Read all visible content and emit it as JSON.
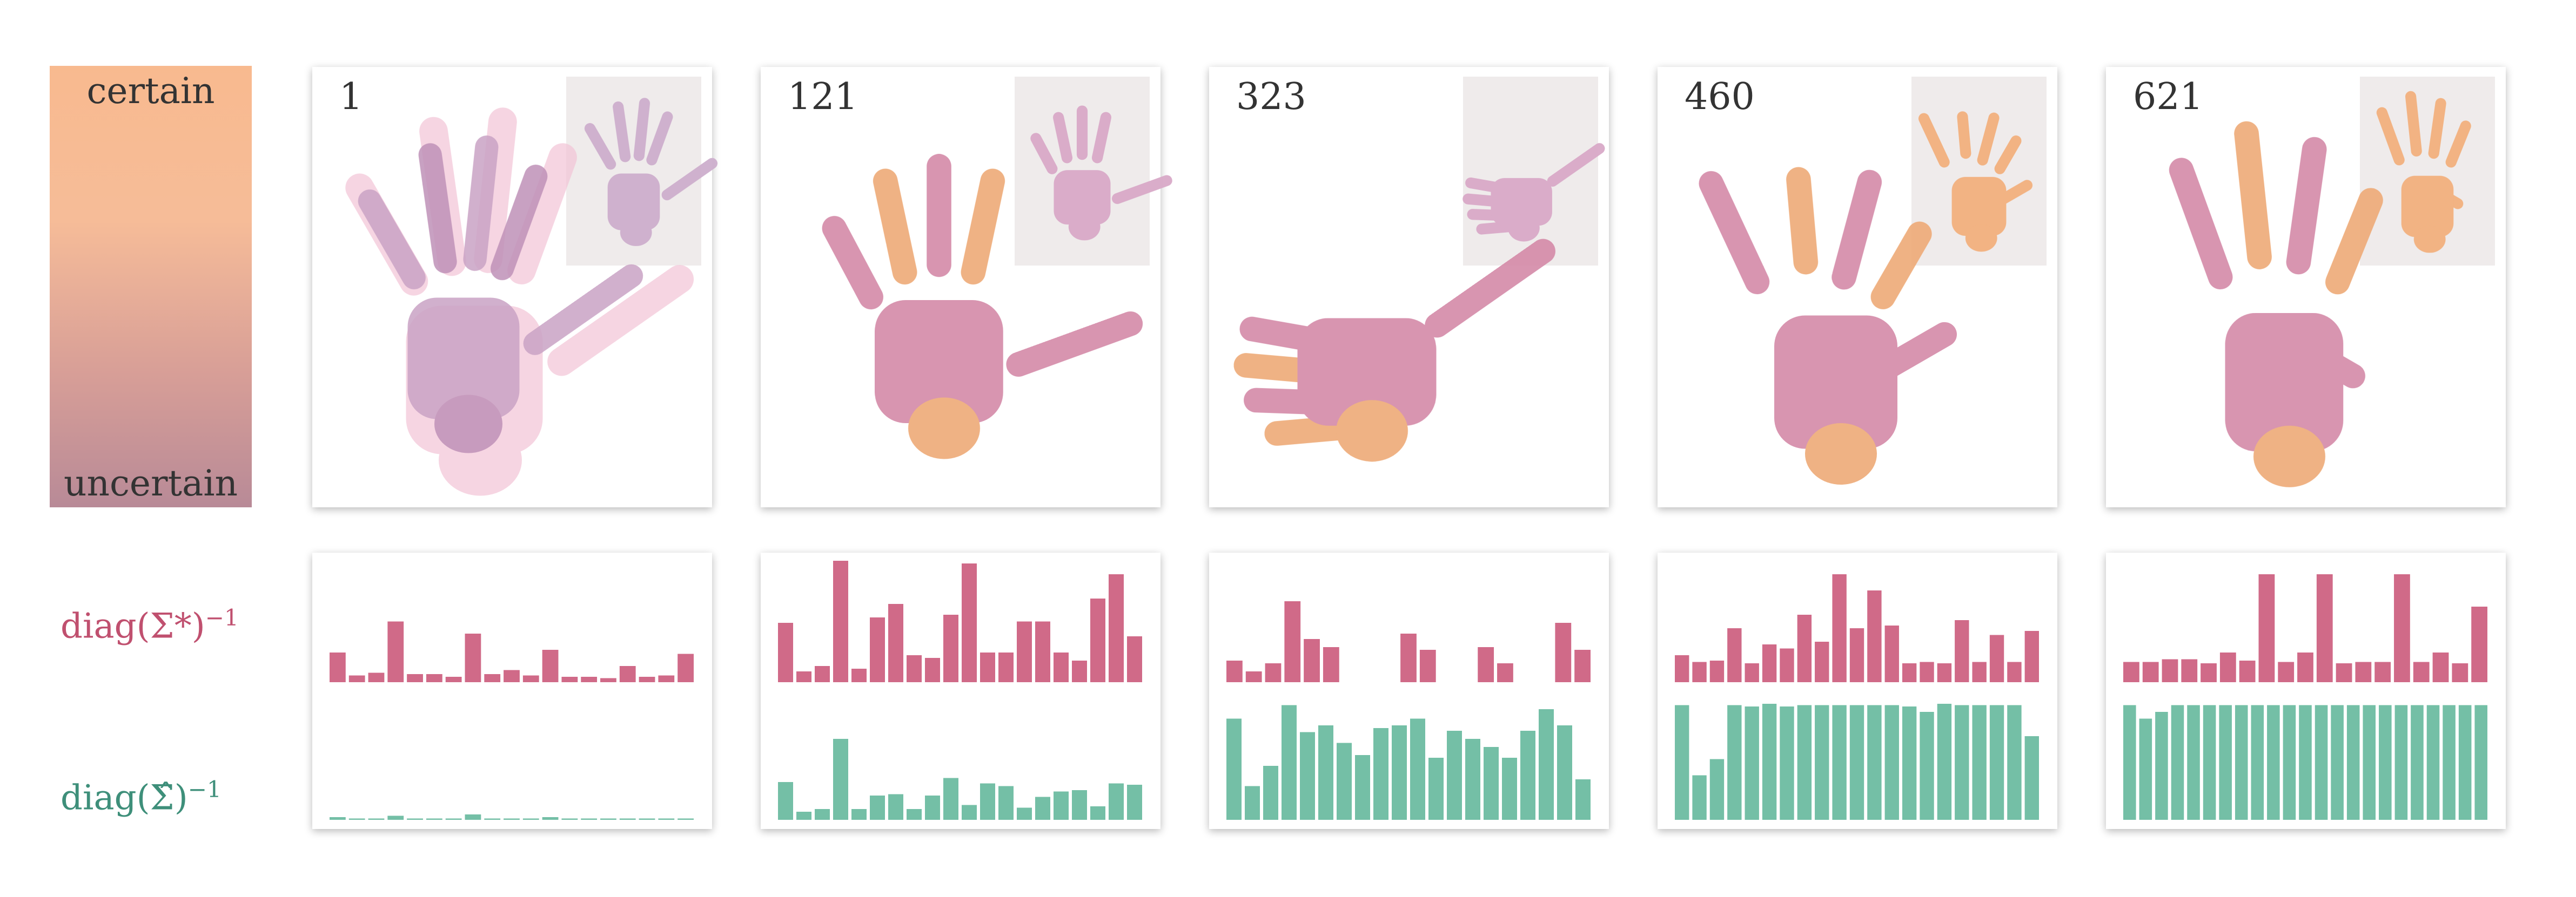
{
  "legend": {
    "top_label": "certain",
    "bottom_label": "uncertain"
  },
  "row_labels": {
    "sigma_star": {
      "base": "diag(Σ*)",
      "exp": "−1",
      "color": "#c0506f"
    },
    "sigma_hat": {
      "base": "diag(Σ̂)",
      "exp": "−1",
      "color": "#3e8f7a"
    }
  },
  "colors": {
    "pink": "#d06a88",
    "teal": "#74bfa6",
    "hand_pink": "#d8a0bd",
    "hand_orange": "#f0b07a"
  },
  "frames": [
    {
      "label": "1",
      "pink": [
        22,
        5,
        7,
        45,
        6,
        6,
        4,
        36,
        6,
        9,
        5,
        24,
        4,
        4,
        3,
        12,
        4,
        5,
        21
      ],
      "teal": [
        2,
        1,
        1,
        3,
        1,
        1,
        1,
        4,
        1,
        1,
        1,
        2,
        1,
        1,
        1,
        1,
        1,
        1,
        1
      ],
      "pose": "open"
    },
    {
      "label": "121",
      "pink": [
        44,
        8,
        12,
        90,
        10,
        48,
        58,
        20,
        18,
        50,
        88,
        22,
        22,
        45,
        45,
        22,
        16,
        62,
        80,
        34
      ],
      "teal": [
        28,
        6,
        8,
        60,
        8,
        18,
        19,
        8,
        18,
        31,
        11,
        27,
        25,
        9,
        17,
        21,
        22,
        10,
        27,
        26
      ],
      "pose": "spread"
    },
    {
      "label": "323",
      "pink": [
        16,
        8,
        14,
        60,
        32,
        26,
        0,
        0,
        0,
        36,
        24,
        0,
        0,
        26,
        14,
        0,
        0,
        44,
        24
      ],
      "teal": [
        75,
        25,
        40,
        85,
        65,
        70,
        57,
        48,
        68,
        70,
        75,
        46,
        66,
        60,
        54,
        46,
        66,
        82,
        70,
        30
      ],
      "pose": "thumb"
    },
    {
      "label": "460",
      "pink": [
        20,
        15,
        16,
        40,
        14,
        28,
        25,
        50,
        30,
        80,
        40,
        68,
        42,
        14,
        15,
        14,
        46,
        15,
        35,
        15,
        38
      ],
      "teal": [
        85,
        33,
        45,
        85,
        84,
        86,
        84,
        85,
        85,
        85,
        85,
        85,
        85,
        84,
        80,
        86,
        85,
        85,
        85,
        85,
        62
      ],
      "pose": "claw"
    },
    {
      "label": "621",
      "pink": [
        15,
        15,
        17,
        17,
        14,
        22,
        16,
        80,
        15,
        22,
        80,
        14,
        15,
        15,
        80,
        15,
        22,
        14,
        56
      ],
      "teal": [
        85,
        75,
        80,
        85,
        85,
        85,
        85,
        85,
        85,
        85,
        85,
        85,
        85,
        85,
        85,
        85,
        85,
        85,
        85,
        85,
        85,
        85,
        85
      ],
      "pose": "ok"
    }
  ]
}
